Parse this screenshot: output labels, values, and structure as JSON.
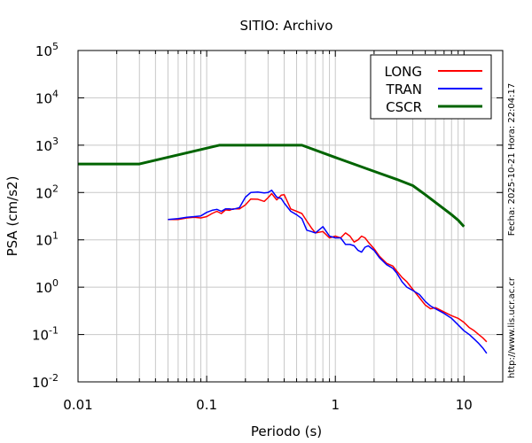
{
  "chart_data": {
    "type": "line",
    "title": "SITIO: Archivo",
    "xlabel": "Periodo (s)",
    "ylabel": "PSA (cm/s2)",
    "xscale": "log",
    "yscale": "log",
    "xlim": [
      0.01,
      20
    ],
    "ylim": [
      0.01,
      100000
    ],
    "grid": true,
    "legend_position": "top-right",
    "x_tick_labels": [
      "0.01",
      "0.1",
      "1",
      "10"
    ],
    "x_ticks": [
      0.01,
      0.1,
      1,
      10
    ],
    "y_ticks": [
      {
        "value": 0.01,
        "base": "10",
        "exp": "-2"
      },
      {
        "value": 0.1,
        "base": "10",
        "exp": "-1"
      },
      {
        "value": 1,
        "base": "10",
        "exp": "0"
      },
      {
        "value": 10,
        "base": "10",
        "exp": "1"
      },
      {
        "value": 100,
        "base": "10",
        "exp": "2"
      },
      {
        "value": 1000,
        "base": "10",
        "exp": "3"
      },
      {
        "value": 10000,
        "base": "10",
        "exp": "4"
      },
      {
        "value": 100000,
        "base": "10",
        "exp": "5"
      }
    ],
    "series": [
      {
        "name": "LONG",
        "color": "#ff0000",
        "x": [
          0.05,
          0.06,
          0.07,
          0.08,
          0.09,
          0.1,
          0.11,
          0.12,
          0.13,
          0.14,
          0.15,
          0.16,
          0.18,
          0.2,
          0.22,
          0.25,
          0.28,
          0.3,
          0.32,
          0.35,
          0.38,
          0.4,
          0.45,
          0.5,
          0.55,
          0.6,
          0.65,
          0.7,
          0.8,
          0.9,
          1.0,
          1.1,
          1.2,
          1.3,
          1.4,
          1.5,
          1.6,
          1.7,
          1.8,
          2.0,
          2.2,
          2.5,
          2.8,
          3.0,
          3.3,
          3.6,
          4.0,
          4.5,
          5.0,
          5.5,
          6.0,
          7.0,
          8.0,
          9.0,
          10.0,
          11.0,
          12.0,
          13.0,
          14.0,
          15.0
        ],
        "y": [
          27,
          27,
          29,
          30,
          29,
          31,
          36,
          40,
          36,
          43,
          42,
          45,
          45,
          55,
          73,
          72,
          65,
          78,
          95,
          70,
          88,
          90,
          45,
          40,
          36,
          25,
          18,
          14,
          15,
          11,
          12,
          11,
          14,
          12,
          9,
          10,
          12,
          11,
          9,
          6.5,
          4.5,
          3.2,
          2.8,
          2.2,
          1.6,
          1.3,
          0.9,
          0.6,
          0.42,
          0.35,
          0.37,
          0.3,
          0.25,
          0.22,
          0.18,
          0.14,
          0.12,
          0.1,
          0.085,
          0.07
        ]
      },
      {
        "name": "TRAN",
        "color": "#0000ff",
        "x": [
          0.05,
          0.06,
          0.07,
          0.08,
          0.09,
          0.1,
          0.11,
          0.12,
          0.13,
          0.14,
          0.15,
          0.16,
          0.18,
          0.2,
          0.22,
          0.25,
          0.28,
          0.3,
          0.32,
          0.35,
          0.38,
          0.4,
          0.45,
          0.5,
          0.55,
          0.6,
          0.65,
          0.7,
          0.8,
          0.9,
          1.0,
          1.1,
          1.2,
          1.3,
          1.4,
          1.5,
          1.6,
          1.7,
          1.8,
          2.0,
          2.2,
          2.5,
          2.8,
          3.0,
          3.3,
          3.6,
          4.0,
          4.5,
          5.0,
          5.5,
          6.0,
          7.0,
          8.0,
          9.0,
          10.0,
          11.0,
          12.0,
          13.0,
          14.0,
          15.0
        ],
        "y": [
          27,
          28,
          30,
          31,
          32,
          38,
          42,
          44,
          40,
          45,
          45,
          44,
          48,
          80,
          100,
          102,
          98,
          100,
          112,
          80,
          75,
          60,
          40,
          34,
          28,
          16,
          15,
          14,
          19,
          12,
          11,
          11,
          8,
          8,
          7.5,
          6,
          5.5,
          7,
          7.5,
          6,
          4.2,
          3.0,
          2.5,
          2.0,
          1.3,
          1.0,
          0.85,
          0.7,
          0.5,
          0.4,
          0.35,
          0.28,
          0.22,
          0.16,
          0.12,
          0.1,
          0.08,
          0.065,
          0.052,
          0.04
        ]
      },
      {
        "name": "CSCR",
        "color": "#006400",
        "x": [
          0.01,
          0.03,
          0.125,
          0.55,
          1.0,
          2.0,
          3.0,
          4.0,
          5.0,
          6.0,
          7.0,
          8.0,
          9.0,
          10.0
        ],
        "y": [
          400,
          400,
          1000,
          1000,
          550,
          280,
          190,
          140,
          90,
          62,
          45,
          34,
          26,
          19
        ]
      }
    ],
    "side_text": "Fecha: 2025-10-21  Hora: 22:04:17",
    "footer_text": "http://www.lis.ucr.ac.cr"
  }
}
